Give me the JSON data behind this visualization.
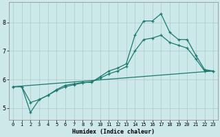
{
  "title": "",
  "xlabel": "Humidex (Indice chaleur)",
  "background_color": "#cce8e8",
  "grid_color": "#aacccc",
  "line_color": "#1a7a6e",
  "xlim": [
    -0.5,
    23.5
  ],
  "ylim": [
    4.6,
    8.7
  ],
  "xticks": [
    0,
    1,
    2,
    3,
    4,
    5,
    6,
    7,
    8,
    9,
    10,
    11,
    12,
    13,
    14,
    15,
    16,
    17,
    18,
    19,
    20,
    21,
    22,
    23
  ],
  "yticks": [
    5,
    6,
    7,
    8
  ],
  "line1_x": [
    0,
    1,
    2,
    3,
    4,
    5,
    6,
    7,
    8,
    9,
    10,
    11,
    12,
    13,
    14,
    15,
    16,
    17,
    18,
    19,
    20,
    21,
    22,
    23
  ],
  "line1_y": [
    5.75,
    5.75,
    4.85,
    5.3,
    5.45,
    5.65,
    5.8,
    5.85,
    5.9,
    5.9,
    6.1,
    6.3,
    6.4,
    6.55,
    7.55,
    8.05,
    8.05,
    8.3,
    7.65,
    7.4,
    7.4,
    6.85,
    6.35,
    6.3
  ],
  "line2_x": [
    0,
    1,
    2,
    3,
    4,
    5,
    6,
    7,
    8,
    9,
    10,
    11,
    12,
    13,
    14,
    15,
    16,
    17,
    18,
    19,
    20,
    21,
    22,
    23
  ],
  "line2_y": [
    5.75,
    5.75,
    5.2,
    5.3,
    5.45,
    5.62,
    5.75,
    5.82,
    5.88,
    5.92,
    6.05,
    6.2,
    6.3,
    6.45,
    7.0,
    7.4,
    7.45,
    7.55,
    7.3,
    7.2,
    7.1,
    6.72,
    6.3,
    6.3
  ],
  "line3_x": [
    0,
    23
  ],
  "line3_y": [
    5.75,
    6.3
  ]
}
